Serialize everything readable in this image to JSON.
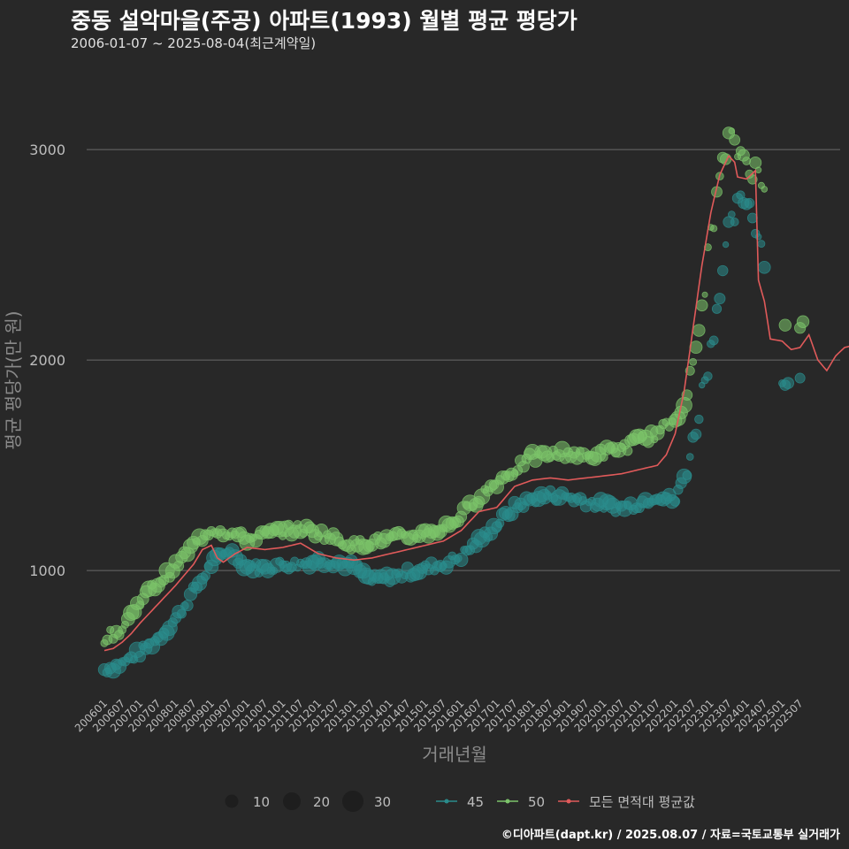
{
  "header": {
    "title": "중동 설악마을(주공) 아파트(1993) 월별 평균 평당가",
    "subtitle": "2006-01-07 ~ 2025-08-04(최근계약일)"
  },
  "caption": "©디아파트(dapt.kr) / 2025.08.07 / 자료=국토교통부 실거래가",
  "colors": {
    "background": "#282828",
    "grid": "#6a6a6a",
    "series_45": "#2a8c8c",
    "series_50": "#7cc46a",
    "average": "#e05a5a"
  },
  "chart_data": {
    "type": "scatter",
    "xlabel": "거래년월",
    "ylabel": "평균 평당가(만 원)",
    "ylim": [
      400,
      3450
    ],
    "yticks": [
      1000,
      2000,
      3000
    ],
    "grid": true,
    "legend_position": "bottom",
    "x_tick_labels": [
      "200601",
      "200607",
      "200701",
      "200707",
      "200801",
      "200807",
      "200901",
      "200907",
      "201001",
      "201007",
      "201101",
      "201107",
      "201201",
      "201207",
      "201301",
      "201307",
      "201401",
      "201407",
      "201501",
      "201507",
      "201601",
      "201607",
      "201701",
      "201707",
      "201801",
      "201807",
      "201901",
      "201907",
      "202001",
      "202007",
      "202101",
      "202107",
      "202201",
      "202207",
      "202301",
      "202307",
      "202401",
      "202407",
      "202501",
      "202507"
    ],
    "size_legend": {
      "title": "",
      "values": [
        10,
        20,
        30
      ]
    },
    "series": [
      {
        "name": "45",
        "kind": "points",
        "anchors": [
          [
            0,
            530
          ],
          [
            6,
            560
          ],
          [
            12,
            610
          ],
          [
            18,
            680
          ],
          [
            24,
            770
          ],
          [
            30,
            900
          ],
          [
            36,
            1030
          ],
          [
            42,
            1100
          ],
          [
            48,
            1020
          ],
          [
            54,
            1010
          ],
          [
            60,
            1030
          ],
          [
            66,
            1030
          ],
          [
            72,
            1050
          ],
          [
            78,
            1040
          ],
          [
            84,
            1020
          ],
          [
            90,
            950
          ],
          [
            96,
            970
          ],
          [
            102,
            990
          ],
          [
            108,
            1010
          ],
          [
            114,
            1030
          ],
          [
            120,
            1070
          ],
          [
            126,
            1140
          ],
          [
            132,
            1220
          ],
          [
            138,
            1300
          ],
          [
            144,
            1340
          ],
          [
            150,
            1360
          ],
          [
            156,
            1350
          ],
          [
            162,
            1330
          ],
          [
            168,
            1310
          ],
          [
            174,
            1300
          ],
          [
            180,
            1320
          ],
          [
            186,
            1360
          ],
          [
            192,
            1330
          ],
          [
            195,
            1450
          ],
          [
            198,
            1600
          ],
          [
            201,
            1850
          ],
          [
            204,
            2050
          ],
          [
            207,
            2350
          ],
          [
            210,
            2600
          ],
          [
            213,
            2720
          ],
          [
            216,
            2780
          ],
          [
            219,
            2650
          ],
          [
            222,
            2500
          ],
          [
            228,
            1920
          ],
          [
            234,
            1870
          ],
          [
            240,
            1800
          ],
          [
            246,
            1830
          ],
          [
            252,
            1900
          ],
          [
            258,
            1880
          ],
          [
            264,
            1890
          ]
        ],
        "gap_months": [
          223,
          227
        ],
        "range_months": [
          0,
          234
        ]
      },
      {
        "name": "50",
        "kind": "points",
        "anchors": [
          [
            0,
            680
          ],
          [
            6,
            720
          ],
          [
            12,
            860
          ],
          [
            18,
            940
          ],
          [
            24,
            1020
          ],
          [
            30,
            1120
          ],
          [
            36,
            1200
          ],
          [
            42,
            1180
          ],
          [
            48,
            1150
          ],
          [
            54,
            1170
          ],
          [
            60,
            1190
          ],
          [
            66,
            1200
          ],
          [
            72,
            1180
          ],
          [
            78,
            1150
          ],
          [
            84,
            1120
          ],
          [
            90,
            1140
          ],
          [
            96,
            1150
          ],
          [
            102,
            1160
          ],
          [
            108,
            1180
          ],
          [
            114,
            1200
          ],
          [
            120,
            1260
          ],
          [
            126,
            1350
          ],
          [
            132,
            1420
          ],
          [
            138,
            1480
          ],
          [
            144,
            1540
          ],
          [
            150,
            1550
          ],
          [
            156,
            1560
          ],
          [
            162,
            1540
          ],
          [
            168,
            1560
          ],
          [
            174,
            1580
          ],
          [
            180,
            1620
          ],
          [
            186,
            1650
          ],
          [
            192,
            1720
          ],
          [
            195,
            1800
          ],
          [
            198,
            1950
          ],
          [
            201,
            2250
          ],
          [
            204,
            2600
          ],
          [
            207,
            2850
          ],
          [
            210,
            3050
          ],
          [
            213,
            3000
          ],
          [
            216,
            2950
          ],
          [
            219,
            2900
          ],
          [
            222,
            2800
          ],
          [
            228,
            2200
          ],
          [
            234,
            2180
          ],
          [
            240,
            2150
          ],
          [
            246,
            2220
          ],
          [
            252,
            2300
          ],
          [
            258,
            2280
          ],
          [
            264,
            2330
          ]
        ],
        "gap_months": [
          223,
          227
        ],
        "range_months": [
          0,
          235
        ]
      },
      {
        "name": "모든 면적대 평균값",
        "kind": "line",
        "anchors": [
          [
            0,
            620
          ],
          [
            3,
            630
          ],
          [
            6,
            660
          ],
          [
            9,
            700
          ],
          [
            12,
            750
          ],
          [
            18,
            840
          ],
          [
            24,
            930
          ],
          [
            30,
            1030
          ],
          [
            33,
            1100
          ],
          [
            36,
            1120
          ],
          [
            38,
            1060
          ],
          [
            40,
            1040
          ],
          [
            44,
            1080
          ],
          [
            48,
            1110
          ],
          [
            54,
            1100
          ],
          [
            60,
            1110
          ],
          [
            66,
            1130
          ],
          [
            72,
            1080
          ],
          [
            78,
            1060
          ],
          [
            84,
            1050
          ],
          [
            90,
            1060
          ],
          [
            96,
            1080
          ],
          [
            102,
            1100
          ],
          [
            108,
            1120
          ],
          [
            114,
            1140
          ],
          [
            120,
            1190
          ],
          [
            126,
            1280
          ],
          [
            132,
            1300
          ],
          [
            138,
            1400
          ],
          [
            144,
            1430
          ],
          [
            150,
            1440
          ],
          [
            156,
            1430
          ],
          [
            162,
            1440
          ],
          [
            168,
            1450
          ],
          [
            174,
            1460
          ],
          [
            180,
            1480
          ],
          [
            186,
            1500
          ],
          [
            189,
            1550
          ],
          [
            192,
            1650
          ],
          [
            195,
            1850
          ],
          [
            198,
            2150
          ],
          [
            201,
            2450
          ],
          [
            204,
            2700
          ],
          [
            207,
            2880
          ],
          [
            210,
            2970
          ],
          [
            212,
            2940
          ],
          [
            213,
            2870
          ],
          [
            216,
            2860
          ],
          [
            219,
            2900
          ],
          [
            220,
            2380
          ],
          [
            222,
            2280
          ],
          [
            224,
            2100
          ],
          [
            228,
            2090
          ],
          [
            231,
            2050
          ],
          [
            234,
            2060
          ],
          [
            237,
            2120
          ],
          [
            240,
            2000
          ],
          [
            243,
            1950
          ],
          [
            246,
            2020
          ],
          [
            249,
            2060
          ],
          [
            252,
            2070
          ],
          [
            255,
            2040
          ],
          [
            258,
            2080
          ],
          [
            261,
            2100
          ],
          [
            263,
            2170
          ],
          [
            264,
            2150
          ]
        ]
      }
    ]
  },
  "legend": {
    "size_values": [
      "10",
      "20",
      "30"
    ],
    "series_labels": [
      "45",
      "50",
      "모든 면적대 평균값"
    ]
  }
}
